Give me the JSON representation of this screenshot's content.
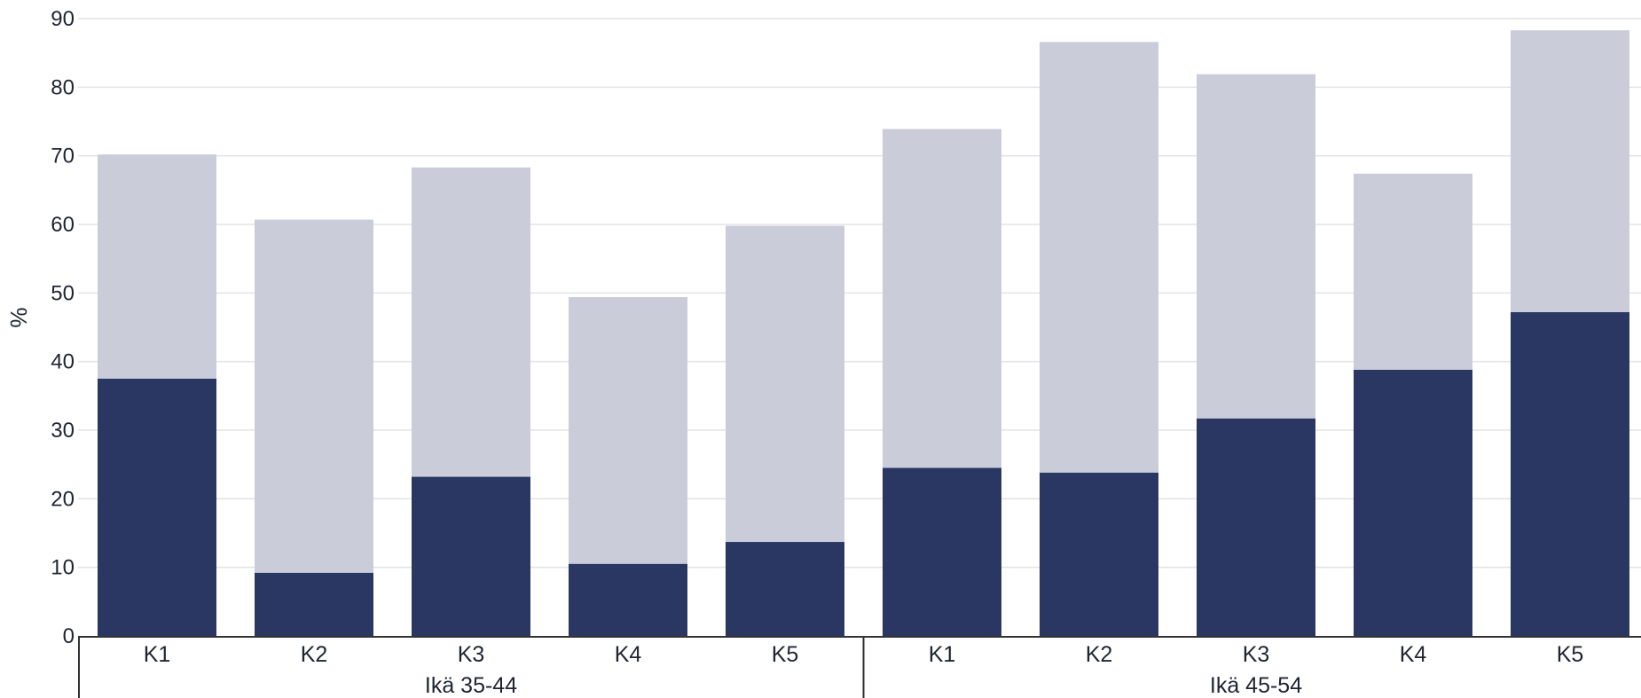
{
  "chart_data": {
    "type": "bar",
    "stacked": true,
    "ylabel": "%",
    "ylim": [
      0,
      90
    ],
    "yticks": [
      0,
      10,
      20,
      30,
      40,
      50,
      60,
      70,
      80,
      90
    ],
    "grid": true,
    "groups": [
      {
        "label": "Ikä 35-44",
        "categories": [
          "K1",
          "K2",
          "K3",
          "K4",
          "K5"
        ],
        "dark": [
          37.5,
          9.2,
          23.2,
          10.5,
          13.7
        ],
        "total": [
          70.2,
          60.7,
          68.3,
          49.4,
          59.8
        ]
      },
      {
        "label": "Ikä 45-54",
        "categories": [
          "K1",
          "K2",
          "K3",
          "K4",
          "K5"
        ],
        "dark": [
          24.5,
          23.8,
          31.7,
          38.8,
          47.2
        ],
        "total": [
          73.9,
          86.6,
          81.9,
          67.4,
          88.3
        ]
      }
    ],
    "colors": {
      "dark": "#2b3763",
      "light": "#cacdd9"
    }
  }
}
